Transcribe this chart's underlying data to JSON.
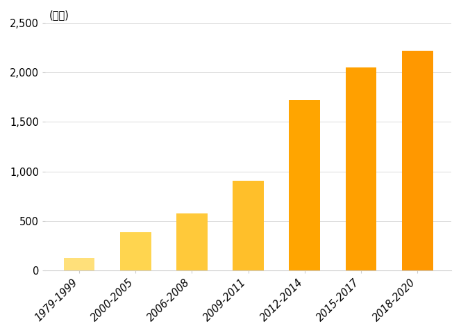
{
  "categories": [
    "1979-1999",
    "2000-2005",
    "2006-2008",
    "2009-2011",
    "2012-2014",
    "2015-2017",
    "2018-2020"
  ],
  "values": [
    130,
    390,
    580,
    910,
    1720,
    2050,
    2220
  ],
  "bar_colors": [
    "#FFE07A",
    "#FFD54F",
    "#FFC93A",
    "#FFBF2A",
    "#FFA500",
    "#FFA000",
    "#FF9800"
  ],
  "ylabel_text": "(편수)",
  "ylim": [
    0,
    2500
  ],
  "yticks": [
    0,
    500,
    1000,
    1500,
    2000,
    2500
  ],
  "ytick_labels": [
    "0",
    "500",
    "1,000",
    "1,500",
    "2,000",
    "2,500"
  ],
  "background_color": "#ffffff",
  "spine_color": "#cccccc",
  "tick_label_fontsize": 10.5,
  "ylabel_fontsize": 10.5,
  "bar_width": 0.55
}
